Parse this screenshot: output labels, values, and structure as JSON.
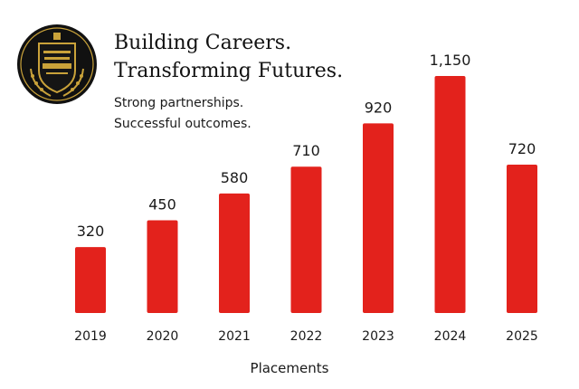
{
  "header": {
    "headline_line1": "Building Careers.",
    "headline_line2": "Transforming Futures.",
    "tagline_line1": "Strong partnerships.",
    "tagline_line2": "Successful outcomes."
  },
  "colors": {
    "bar": "#e3221c",
    "badge_bg": "#111111",
    "badge_gold": "#c9a23a"
  },
  "chart_data": {
    "type": "bar",
    "categories": [
      "2019",
      "2020",
      "2021",
      "2022",
      "2023",
      "2024",
      "2025"
    ],
    "values": [
      320,
      450,
      580,
      710,
      920,
      1150,
      720
    ],
    "value_labels": [
      "320",
      "450",
      "580",
      "710",
      "920",
      "1,150",
      "720"
    ],
    "title": "",
    "xlabel": "Placements",
    "ylabel": "",
    "ylim": [
      0,
      1200
    ],
    "grid": false,
    "legend": "none"
  }
}
